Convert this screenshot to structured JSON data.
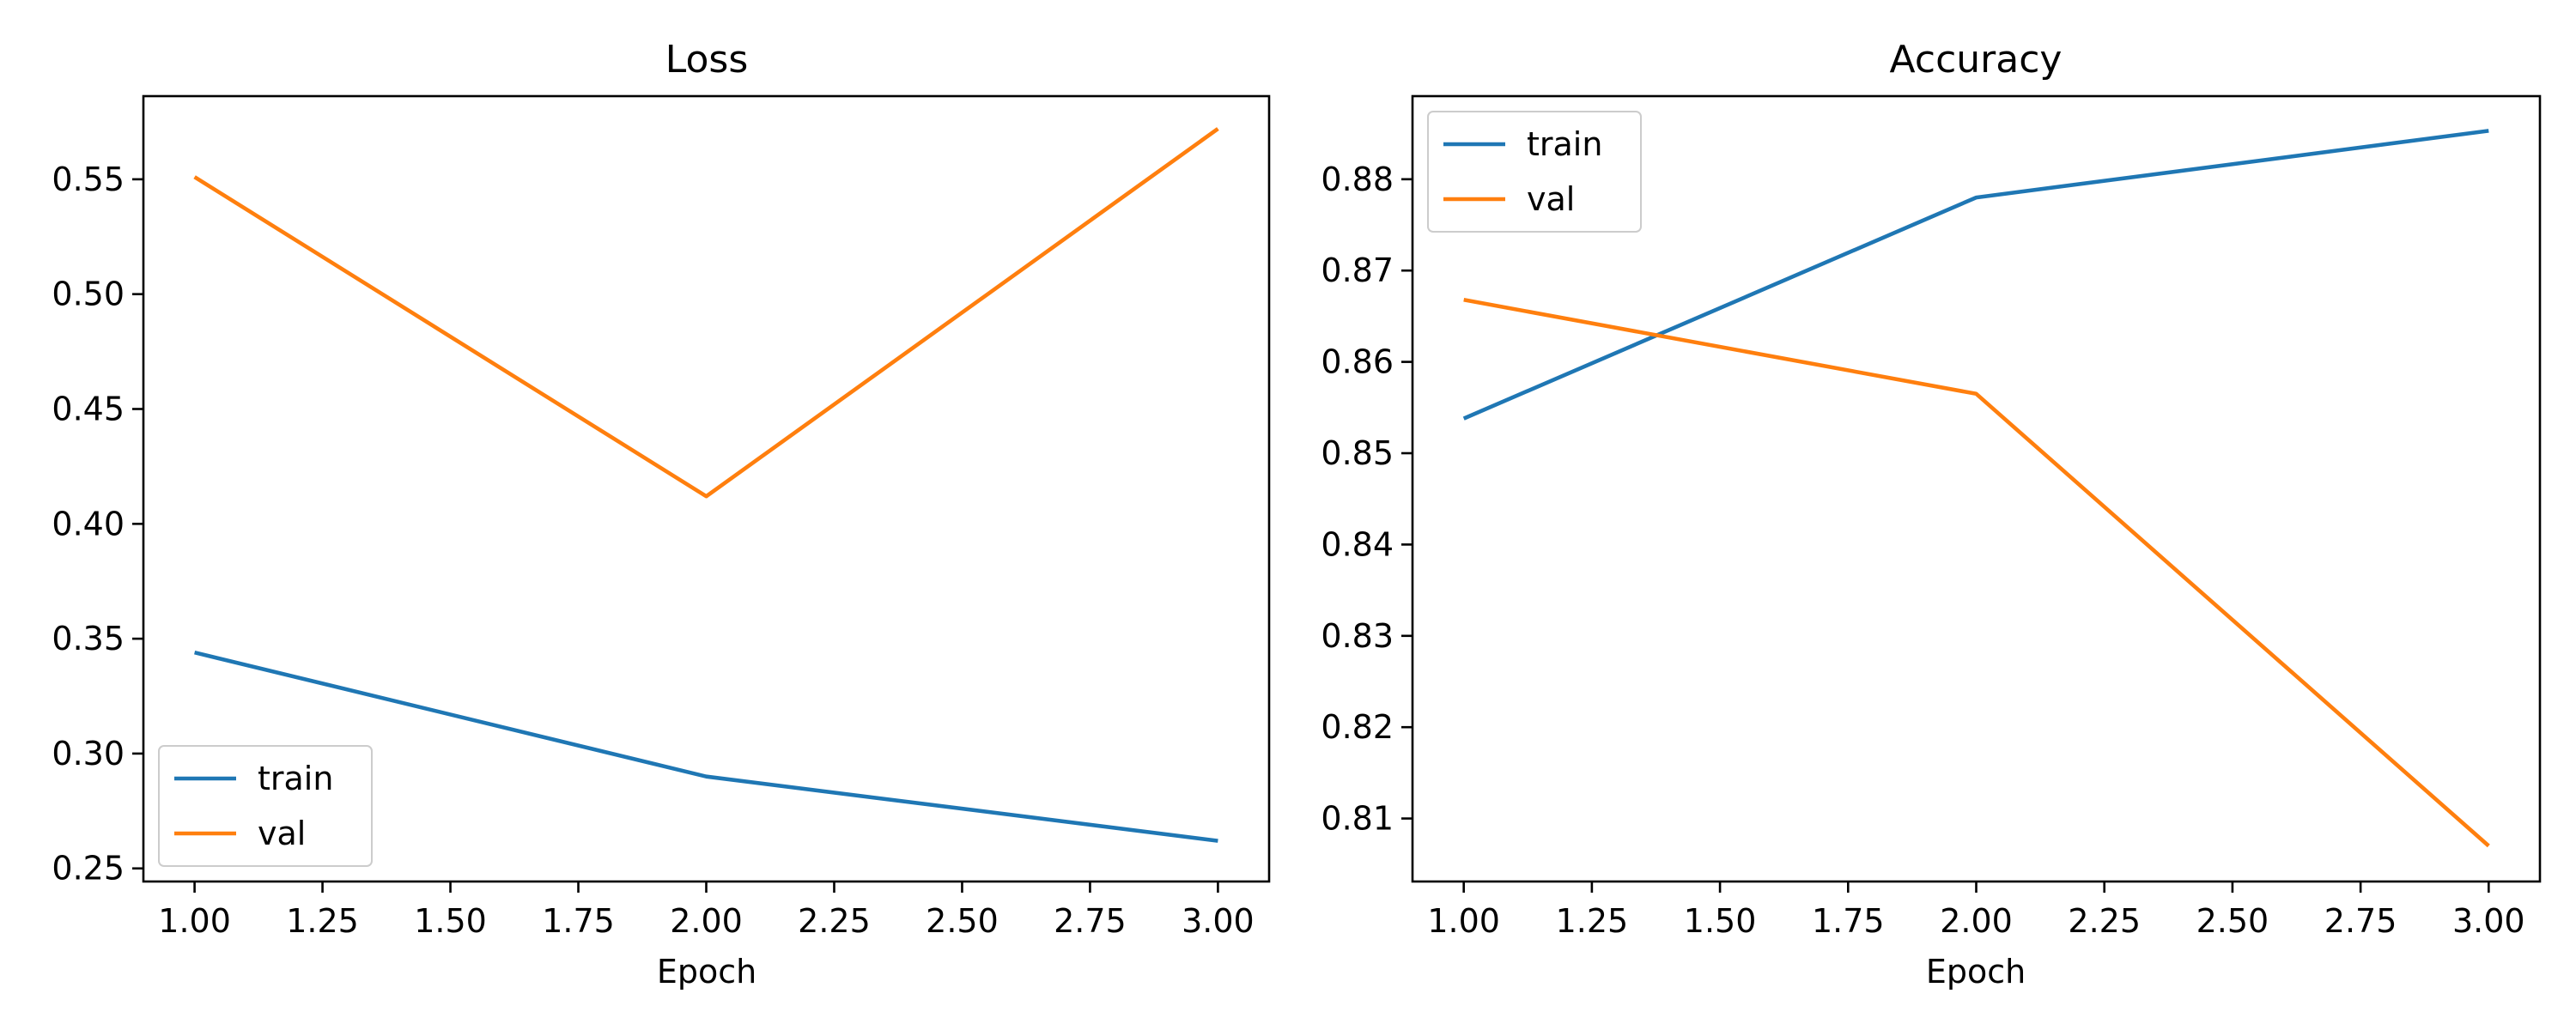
{
  "chart_data": [
    {
      "type": "line",
      "title": "Loss",
      "xlabel": "Epoch",
      "ylabel": "",
      "x": [
        1.0,
        2.0,
        3.0
      ],
      "xlim": [
        0.9,
        3.1
      ],
      "ylim": [
        0.2443,
        0.5862
      ],
      "xticks": [
        1.0,
        1.25,
        1.5,
        1.75,
        2.0,
        2.25,
        2.5,
        2.75,
        3.0
      ],
      "xtick_labels": [
        "1.00",
        "1.25",
        "1.50",
        "1.75",
        "2.00",
        "2.25",
        "2.50",
        "2.75",
        "3.00"
      ],
      "yticks": [
        0.25,
        0.3,
        0.35,
        0.4,
        0.45,
        0.5,
        0.55
      ],
      "ytick_labels": [
        "0.25",
        "0.30",
        "0.35",
        "0.40",
        "0.45",
        "0.50",
        "0.55"
      ],
      "grid": false,
      "legend": "lower left",
      "series": [
        {
          "name": "train",
          "color": "#1f77b4",
          "values": [
            0.344,
            0.29,
            0.262
          ]
        },
        {
          "name": "val",
          "color": "#ff7f0e",
          "values": [
            0.551,
            0.412,
            0.572
          ]
        }
      ]
    },
    {
      "type": "line",
      "title": "Accuracy",
      "xlabel": "Epoch",
      "ylabel": "",
      "x": [
        1.0,
        2.0,
        3.0
      ],
      "xlim": [
        0.9,
        3.1
      ],
      "ylim": [
        0.8031,
        0.8891
      ],
      "xticks": [
        1.0,
        1.25,
        1.5,
        1.75,
        2.0,
        2.25,
        2.5,
        2.75,
        3.0
      ],
      "xtick_labels": [
        "1.00",
        "1.25",
        "1.50",
        "1.75",
        "2.00",
        "2.25",
        "2.50",
        "2.75",
        "3.00"
      ],
      "yticks": [
        0.81,
        0.82,
        0.83,
        0.84,
        0.85,
        0.86,
        0.87,
        0.88
      ],
      "ytick_labels": [
        "0.81",
        "0.82",
        "0.83",
        "0.84",
        "0.85",
        "0.86",
        "0.87",
        "0.88"
      ],
      "grid": false,
      "legend": "upper left",
      "series": [
        {
          "name": "train",
          "color": "#1f77b4",
          "values": [
            0.8538,
            0.878,
            0.8853
          ]
        },
        {
          "name": "val",
          "color": "#ff7f0e",
          "values": [
            0.8668,
            0.8565,
            0.807
          ]
        }
      ]
    }
  ]
}
